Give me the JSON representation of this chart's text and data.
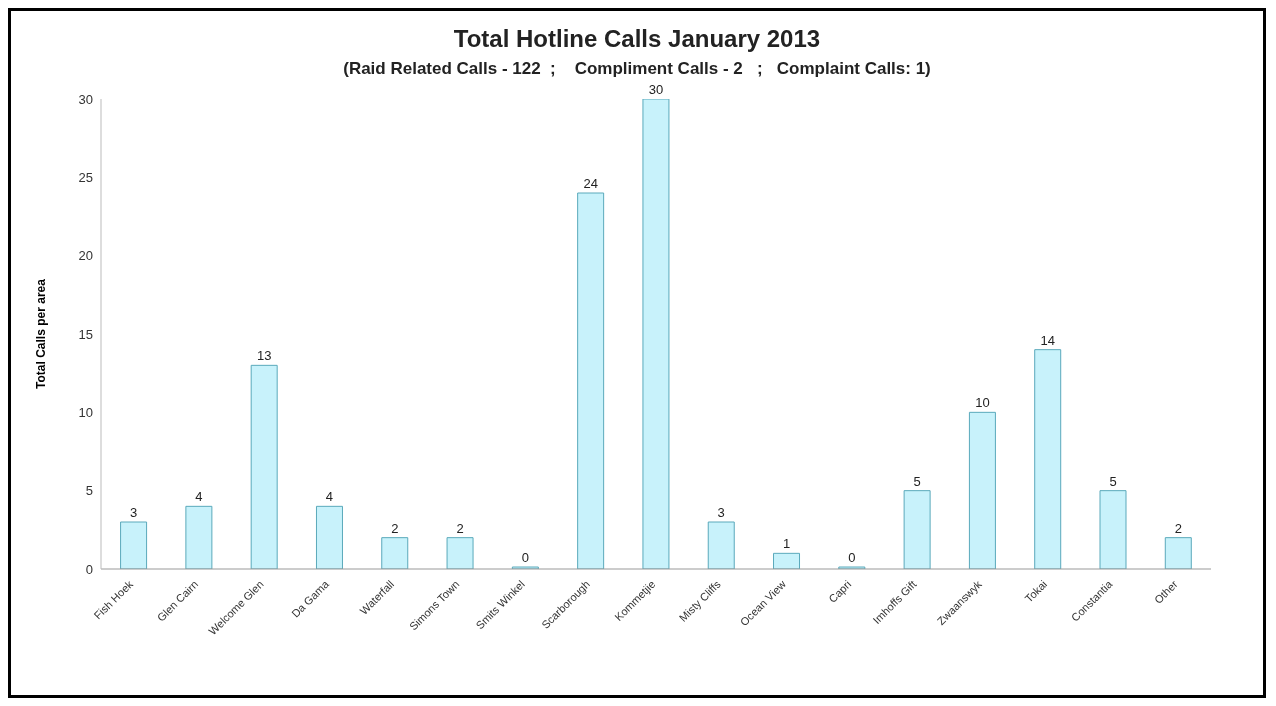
{
  "chart_data": {
    "type": "bar",
    "title": "Total Hotline Calls January 2013",
    "subtitle": "(Raid Related Calls - 122  ;    Compliment Calls - 2   ;   Complaint Calls: 1)",
    "ylabel": "Total Calls per area",
    "categories": [
      "Fish Hoek",
      "Glen Cairn",
      "Welcome Glen",
      "Da Gama",
      "Waterfall",
      "Simons Town",
      "Smits Winkel",
      "Scarborough",
      "Kommetjie",
      "Misty Cliffs",
      "Ocean View",
      "Capri",
      "Imhoffs Gift",
      "Zwaanswyk",
      "Tokai",
      "Constantia",
      "Other"
    ],
    "values": [
      3,
      4,
      13,
      4,
      2,
      2,
      0,
      24,
      30,
      3,
      1,
      0,
      5,
      10,
      14,
      5,
      2
    ],
    "color": "#c8f2fb",
    "ylim": [
      0,
      30
    ],
    "yticks": [
      0,
      5,
      10,
      15,
      20,
      25,
      30
    ],
    "grid": false,
    "data_labels": true,
    "legend": false
  }
}
